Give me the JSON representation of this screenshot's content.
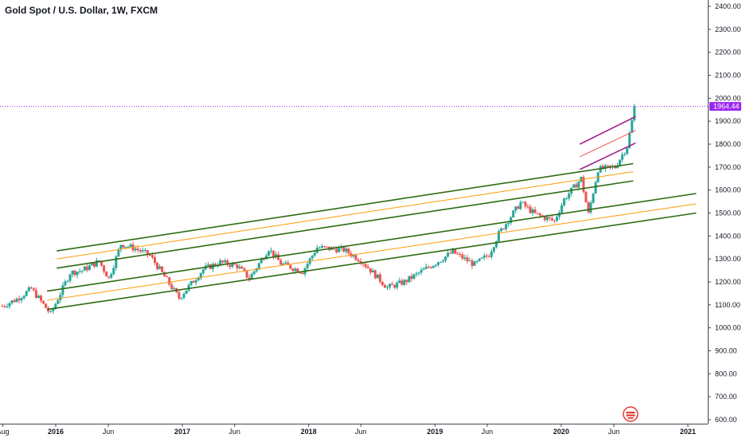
{
  "header": {
    "title": "Gold Spot / U.S. Dollar, 1W, FXCM"
  },
  "colors": {
    "up": "#26a69a",
    "down": "#ef5350",
    "channel_green": "#2e6b12",
    "channel_orange": "#ff9800",
    "recent_purple": "#a0208f",
    "recent_pink": "#ef5350",
    "last_price": "#9c27f0"
  },
  "last_price_label": "1964.44",
  "chart_data": {
    "type": "candlestick",
    "title": "Gold Spot / U.S. Dollar, 1W, FXCM",
    "ylim": [
      580,
      2420
    ],
    "y_ticks": [
      "2400.00",
      "2300.00",
      "2200.00",
      "2100.00",
      "2000.00",
      "1900.00",
      "1800.00",
      "1700.00",
      "1600.00",
      "1500.00",
      "1400.00",
      "1300.00",
      "1200.00",
      "1100.00",
      "1000.00",
      "900.00",
      "800.00",
      "700.00",
      "600.00"
    ],
    "x_ticks": [
      {
        "label": "Aug",
        "date": "2015-08-01",
        "major": false
      },
      {
        "label": "2016",
        "date": "2016-01-01",
        "major": true
      },
      {
        "label": "Jun",
        "date": "2016-06-01",
        "major": false
      },
      {
        "label": "2017",
        "date": "2017-01-01",
        "major": true
      },
      {
        "label": "Jun",
        "date": "2017-06-01",
        "major": false
      },
      {
        "label": "2018",
        "date": "2018-01-01",
        "major": true
      },
      {
        "label": "Jun",
        "date": "2018-06-01",
        "major": false
      },
      {
        "label": "2019",
        "date": "2019-01-01",
        "major": true
      },
      {
        "label": "Jun",
        "date": "2019-06-01",
        "major": false
      },
      {
        "label": "2020",
        "date": "2020-01-01",
        "major": true
      },
      {
        "label": "Jun",
        "date": "2020-06-01",
        "major": false
      },
      {
        "label": "2021",
        "date": "2021-01-01",
        "major": true
      }
    ],
    "price_path": [
      [
        "2015-07-27",
        1095
      ],
      [
        "2015-09-07",
        1125
      ],
      [
        "2015-10-19",
        1170
      ],
      [
        "2015-12-14",
        1060
      ],
      [
        "2016-02-08",
        1240
      ],
      [
        "2016-03-14",
        1250
      ],
      [
        "2016-05-02",
        1290
      ],
      [
        "2016-05-30",
        1215
      ],
      [
        "2016-07-04",
        1365
      ],
      [
        "2016-08-15",
        1345
      ],
      [
        "2016-09-26",
        1315
      ],
      [
        "2016-12-19",
        1130
      ],
      [
        "2017-02-27",
        1255
      ],
      [
        "2017-04-17",
        1285
      ],
      [
        "2017-06-05",
        1270
      ],
      [
        "2017-07-10",
        1215
      ],
      [
        "2017-09-04",
        1345
      ],
      [
        "2017-10-09",
        1280
      ],
      [
        "2017-12-11",
        1245
      ],
      [
        "2018-01-22",
        1350
      ],
      [
        "2018-04-09",
        1340
      ],
      [
        "2018-05-28",
        1295
      ],
      [
        "2018-08-13",
        1175
      ],
      [
        "2018-10-01",
        1200
      ],
      [
        "2019-01-07",
        1290
      ],
      [
        "2019-02-18",
        1330
      ],
      [
        "2019-04-22",
        1275
      ],
      [
        "2019-06-03",
        1320
      ],
      [
        "2019-07-01",
        1410
      ],
      [
        "2019-09-02",
        1545
      ],
      [
        "2019-10-14",
        1495
      ],
      [
        "2019-12-09",
        1465
      ],
      [
        "2020-01-06",
        1560
      ],
      [
        "2020-02-24",
        1650
      ],
      [
        "2020-03-16",
        1495
      ],
      [
        "2020-04-13",
        1690
      ],
      [
        "2020-06-01",
        1700
      ],
      [
        "2020-07-06",
        1790
      ],
      [
        "2020-07-20",
        1900
      ],
      [
        "2020-07-27",
        1964.44
      ]
    ],
    "trend_lines": [
      {
        "style": "green",
        "from": [
          "2016-01-04",
          1335
        ],
        "to": [
          "2020-07-27",
          1715
        ]
      },
      {
        "style": "orange",
        "from": [
          "2016-01-04",
          1300
        ],
        "to": [
          "2020-07-27",
          1680
        ]
      },
      {
        "style": "green",
        "from": [
          "2016-01-04",
          1260
        ],
        "to": [
          "2020-07-27",
          1640
        ]
      },
      {
        "style": "green",
        "from": [
          "2015-12-07",
          1160
        ],
        "to": [
          "2021-01-25",
          1585
        ]
      },
      {
        "style": "orange",
        "from": [
          "2015-12-07",
          1120
        ],
        "to": [
          "2021-01-25",
          1540
        ]
      },
      {
        "style": "green",
        "from": [
          "2015-12-07",
          1080
        ],
        "to": [
          "2021-01-25",
          1500
        ]
      },
      {
        "style": "purple",
        "from": [
          "2020-02-24",
          1800
        ],
        "to": [
          "2020-08-03",
          1920
        ]
      },
      {
        "style": "pink",
        "from": [
          "2020-02-24",
          1745
        ],
        "to": [
          "2020-08-03",
          1860
        ]
      },
      {
        "style": "purple",
        "from": [
          "2020-02-24",
          1690
        ],
        "to": [
          "2020-08-03",
          1805
        ]
      }
    ],
    "last_price": 1964.44
  }
}
